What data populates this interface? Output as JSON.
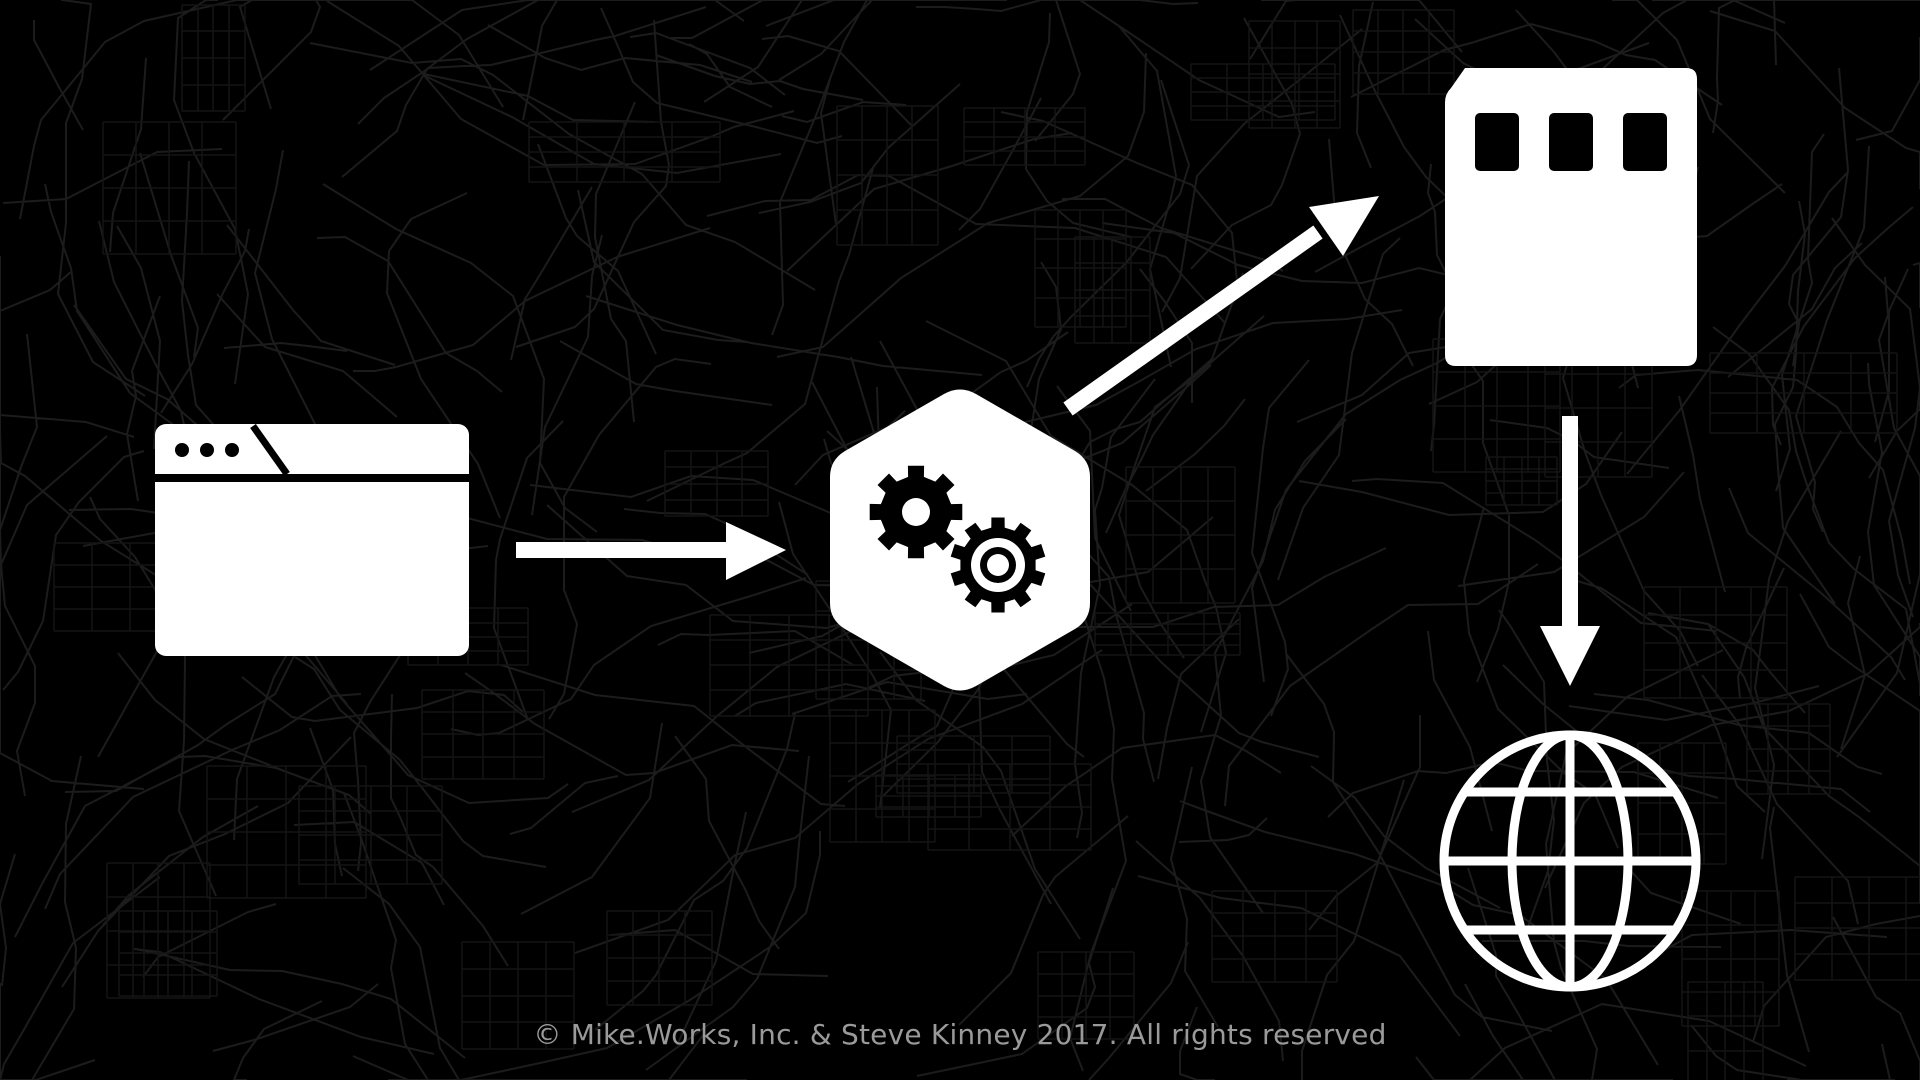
{
  "slide": {
    "background_color": "#000000",
    "foreground_color": "#ffffff",
    "map_line_color": "#1c1c1c",
    "footer_color": "#9a9a9a",
    "background_style": "dark street map"
  },
  "diagram": {
    "nodes": [
      {
        "id": "browser",
        "icon": "browser-window-icon"
      },
      {
        "id": "build-process",
        "icon": "gears-hexagon-icon"
      },
      {
        "id": "storage-card",
        "icon": "sd-card-icon"
      },
      {
        "id": "web",
        "icon": "globe-icon"
      }
    ],
    "edges": [
      {
        "from": "browser",
        "to": "build-process",
        "icon": "arrow-right-icon"
      },
      {
        "from": "build-process",
        "to": "storage-card",
        "icon": "arrow-up-right-icon"
      },
      {
        "from": "storage-card",
        "to": "web",
        "icon": "arrow-down-icon"
      }
    ]
  },
  "footer": {
    "copyright": "© Mike.Works, Inc. & Steve Kinney 2017. All rights reserved"
  }
}
